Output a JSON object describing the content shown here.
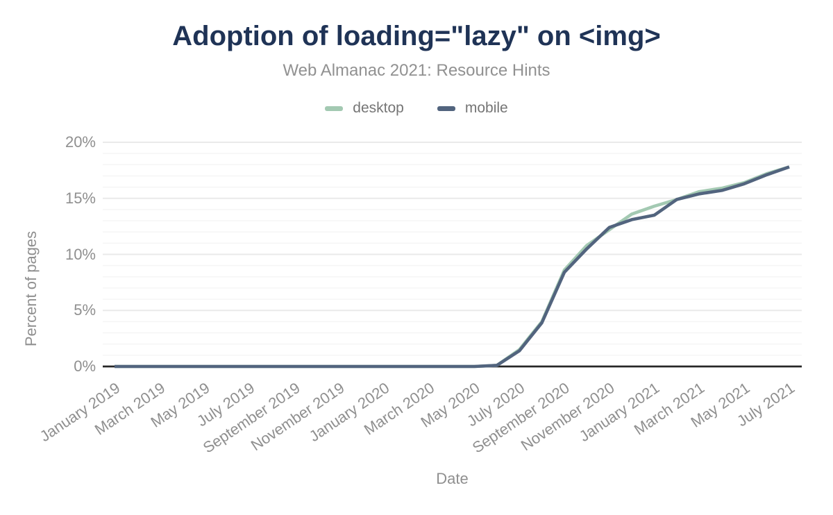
{
  "chart_data": {
    "type": "line",
    "title": "Adoption of loading=\"lazy\" on <img>",
    "subtitle": "Web Almanac 2021: Resource Hints",
    "xlabel": "Date",
    "ylabel": "Percent of pages",
    "ylim": [
      0,
      20
    ],
    "y_major_step": 5,
    "y_minor_step": 1,
    "y_tick_suffix": "%",
    "grid": "horizontal",
    "legend_position": "top",
    "x_tick_every": 2,
    "x": [
      "January 2019",
      "February 2019",
      "March 2019",
      "April 2019",
      "May 2019",
      "June 2019",
      "July 2019",
      "August 2019",
      "September 2019",
      "October 2019",
      "November 2019",
      "December 2019",
      "January 2020",
      "February 2020",
      "March 2020",
      "April 2020",
      "May 2020",
      "June 2020",
      "July 2020",
      "August 2020",
      "September 2020",
      "October 2020",
      "November 2020",
      "December 2020",
      "January 2021",
      "February 2021",
      "March 2021",
      "April 2021",
      "May 2021",
      "June 2021",
      "July 2021"
    ],
    "series": [
      {
        "name": "desktop",
        "color": "#a3c9b2",
        "values": [
          0,
          0,
          0,
          0,
          0,
          0,
          0,
          0,
          0,
          0,
          0,
          0,
          0,
          0,
          0,
          0,
          0,
          0.1,
          1.5,
          4.0,
          8.6,
          10.8,
          12.2,
          13.6,
          14.3,
          14.9,
          15.6,
          15.9,
          16.4,
          17.2,
          17.8
        ]
      },
      {
        "name": "mobile",
        "color": "#52647e",
        "values": [
          0,
          0,
          0,
          0,
          0,
          0,
          0,
          0,
          0,
          0,
          0,
          0,
          0,
          0,
          0,
          0,
          0,
          0.1,
          1.4,
          3.9,
          8.4,
          10.5,
          12.4,
          13.1,
          13.5,
          14.9,
          15.4,
          15.7,
          16.3,
          17.1,
          17.8
        ]
      }
    ]
  },
  "colors": {
    "title": "#1f3356",
    "subtitle": "#919191",
    "axis_text": "#8f8f8f",
    "legend_text": "#757575",
    "axis_line": "#262626",
    "grid_major": "#eaeaea",
    "grid_minor": "#f5f5f5"
  }
}
